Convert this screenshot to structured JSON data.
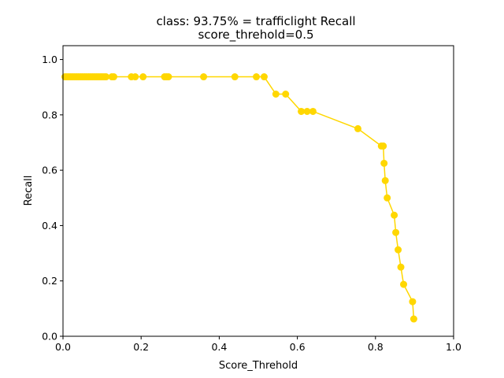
{
  "chart_data": {
    "type": "line",
    "title": "class: 93.75% = trafficlight Recall",
    "subtitle": "score_threhold=0.5",
    "xlabel": "Score_Threhold",
    "ylabel": "Recall",
    "xlim": [
      0.0,
      1.0
    ],
    "ylim": [
      0.0,
      1.05
    ],
    "xticks": [
      "0.0",
      "0.2",
      "0.4",
      "0.6",
      "0.8",
      "1.0"
    ],
    "yticks": [
      "0.0",
      "0.2",
      "0.4",
      "0.6",
      "0.8",
      "1.0"
    ],
    "grid": false,
    "legend": "none",
    "series": [
      {
        "color": "#FFD700",
        "marker": "circle",
        "x": [
          0.005,
          0.01,
          0.015,
          0.02,
          0.025,
          0.03,
          0.035,
          0.04,
          0.045,
          0.05,
          0.055,
          0.06,
          0.065,
          0.07,
          0.075,
          0.08,
          0.085,
          0.09,
          0.095,
          0.1,
          0.105,
          0.11,
          0.125,
          0.13,
          0.175,
          0.185,
          0.205,
          0.26,
          0.265,
          0.27,
          0.36,
          0.44,
          0.495,
          0.515,
          0.545,
          0.57,
          0.61,
          0.625,
          0.64,
          0.755,
          0.815,
          0.82,
          0.822,
          0.825,
          0.83,
          0.848,
          0.852,
          0.858,
          0.865,
          0.872,
          0.895,
          0.898
        ],
        "y": [
          0.9375,
          0.9375,
          0.9375,
          0.9375,
          0.9375,
          0.9375,
          0.9375,
          0.9375,
          0.9375,
          0.9375,
          0.9375,
          0.9375,
          0.9375,
          0.9375,
          0.9375,
          0.9375,
          0.9375,
          0.9375,
          0.9375,
          0.9375,
          0.9375,
          0.9375,
          0.9375,
          0.9375,
          0.9375,
          0.9375,
          0.9375,
          0.9375,
          0.9375,
          0.9375,
          0.9375,
          0.9375,
          0.9375,
          0.9375,
          0.875,
          0.875,
          0.8125,
          0.8125,
          0.8125,
          0.75,
          0.6875,
          0.6875,
          0.625,
          0.5625,
          0.5,
          0.4375,
          0.375,
          0.3125,
          0.25,
          0.1875,
          0.125,
          0.0625
        ]
      }
    ]
  }
}
